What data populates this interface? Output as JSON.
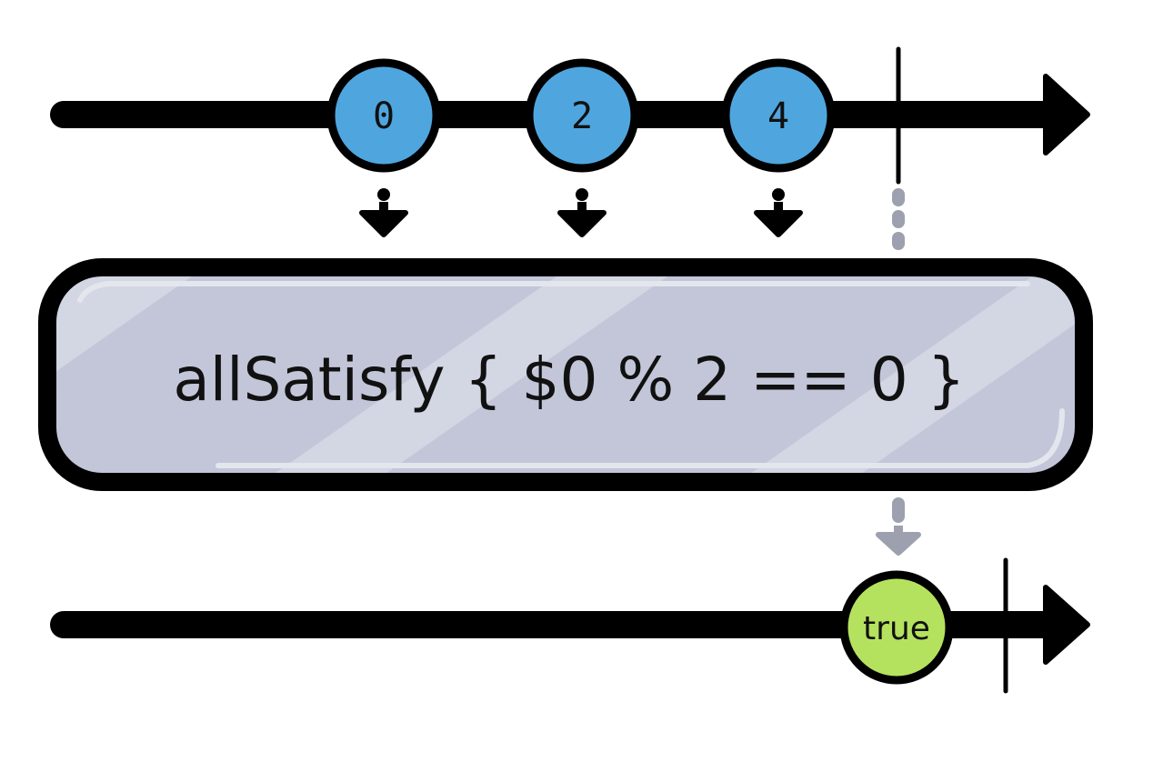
{
  "input_stream": {
    "values": [
      "0",
      "2",
      "4"
    ],
    "completed": true
  },
  "operator": {
    "label": "allSatisfy { $0 % 2 == 0 }"
  },
  "output_stream": {
    "value": "true",
    "completed": true
  },
  "colors": {
    "input_marble": "#4fa6de",
    "output_marble": "#b5e25e",
    "operator_fill": "#c2c6d8",
    "line": "#000000",
    "dashed_arrow": "#9da0ae"
  }
}
